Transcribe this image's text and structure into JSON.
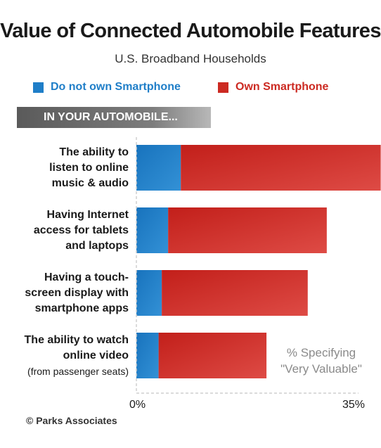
{
  "title": "Value of Connected Automobile Features",
  "subtitle": "U.S. Broadband Households",
  "legend": {
    "no_smartphone": "Do not own Smartphone",
    "own_smartphone": "Own Smartphone"
  },
  "section_label": "IN YOUR AUTOMOBILE...",
  "note_line1": "% Specifying",
  "note_line2": "\"Very Valuable\"",
  "copyright": "© Parks Associates",
  "colors": {
    "blue": "#1f7ec8",
    "red": "#cc2a22"
  },
  "chart_data": {
    "type": "bar",
    "orientation": "horizontal",
    "categories": [
      {
        "lines": [
          "The ability to",
          "listen to online",
          "music & audio"
        ],
        "sub": ""
      },
      {
        "lines": [
          "Having Internet",
          "access for tablets",
          "and laptops"
        ],
        "sub": ""
      },
      {
        "lines": [
          "Having a touch-",
          "screen display with",
          "smartphone apps"
        ],
        "sub": ""
      },
      {
        "lines": [
          "The ability to watch",
          "online video"
        ],
        "sub": "(from passenger seats)"
      }
    ],
    "series": [
      {
        "name": "Do not own Smartphone",
        "values": [
          7,
          5,
          4,
          3.5
        ]
      },
      {
        "name": "Own Smartphone",
        "values": [
          31.5,
          25,
          23,
          17
        ]
      }
    ],
    "xlim": [
      0,
      35
    ],
    "x_tick_labels": [
      "0%",
      "35%"
    ],
    "grid": false
  }
}
